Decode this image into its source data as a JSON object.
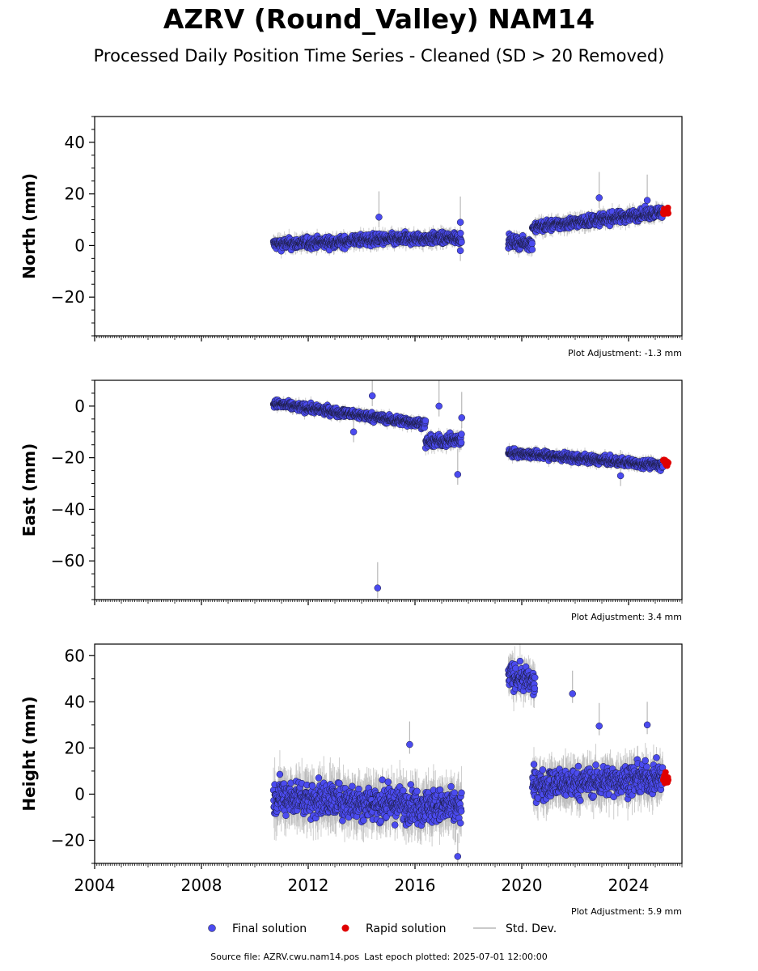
{
  "title": "AZRV (Round_Valley) NAM14",
  "subtitle": "Processed Daily Position Time Series - Cleaned (SD > 20 Removed)",
  "footer": {
    "source": "Source file: AZRV.cwu.nam14.pos",
    "last_epoch": "Last epoch plotted: 2025-07-01 12:00:00"
  },
  "legend": {
    "final": "Final solution",
    "rapid": "Rapid solution",
    "std": "Std. Dev."
  },
  "colors": {
    "final": "#4b4bef",
    "rapid": "#e00000",
    "std": "#b8b8b8"
  },
  "chart_data": [
    {
      "type": "scatter",
      "ylabel": "North (mm)",
      "adjustment": "Plot Adjustment: -1.3 mm",
      "xlim": [
        2004,
        2026
      ],
      "ylim": [
        -35,
        50
      ],
      "yticks": [
        -20,
        0,
        20,
        40
      ],
      "yticks_labels": [
        "−20",
        "0",
        "20",
        "40"
      ],
      "xticks": [
        2004,
        2008,
        2012,
        2016,
        2020,
        2024
      ],
      "final_segments": [
        {
          "x0": 2010.7,
          "x1": 2013.5,
          "y0": 0.5,
          "y1": 1.5,
          "noise": 2.0
        },
        {
          "x0": 2013.5,
          "x1": 2017.75,
          "y0": 2.0,
          "y1": 3.0,
          "noise": 2.0
        },
        {
          "x0": 2019.5,
          "x1": 2020.4,
          "y0": 1.5,
          "y1": 0.5,
          "noise": 2.0
        },
        {
          "x0": 2020.4,
          "x1": 2025.3,
          "y0": 7.0,
          "y1": 13.0,
          "noise": 2.0
        }
      ],
      "rapid": {
        "x0": 2025.3,
        "x1": 2025.5,
        "y0": 12.5,
        "y1": 13.5,
        "noise": 1.2
      },
      "outliers": [
        [
          2014.65,
          11
        ],
        [
          2022.9,
          18.5
        ],
        [
          2024.7,
          17.5
        ],
        [
          2017.7,
          9
        ],
        [
          2017.7,
          -2
        ]
      ]
    },
    {
      "type": "scatter",
      "ylabel": "East (mm)",
      "adjustment": "Plot Adjustment: 3.4 mm",
      "xlim": [
        2004,
        2026
      ],
      "ylim": [
        -75,
        10
      ],
      "yticks": [
        -60,
        -40,
        -20,
        0
      ],
      "yticks_labels": [
        "−60",
        "−40",
        "−20",
        "0"
      ],
      "xticks": [
        2004,
        2008,
        2012,
        2016,
        2020,
        2024
      ],
      "final_segments": [
        {
          "x0": 2010.7,
          "x1": 2016.4,
          "y0": 1.0,
          "y1": -7.0,
          "noise": 1.5
        },
        {
          "x0": 2016.4,
          "x1": 2017.75,
          "y0": -14.0,
          "y1": -13.0,
          "noise": 2.0
        },
        {
          "x0": 2019.5,
          "x1": 2025.3,
          "y0": -18.0,
          "y1": -23.0,
          "noise": 1.5
        }
      ],
      "rapid": {
        "x0": 2025.3,
        "x1": 2025.5,
        "y0": -21.0,
        "y1": -22.5,
        "noise": 1.0
      },
      "outliers": [
        [
          2014.6,
          -70.5
        ],
        [
          2017.6,
          -26.5
        ],
        [
          2013.7,
          -10
        ],
        [
          2014.4,
          4
        ],
        [
          2016.9,
          0
        ],
        [
          2023.7,
          -27
        ],
        [
          2017.75,
          -4.5
        ]
      ]
    },
    {
      "type": "scatter",
      "ylabel": "Height (mm)",
      "adjustment": "Plot Adjustment: 5.9 mm",
      "xlim": [
        2004,
        2026
      ],
      "ylim": [
        -30,
        65
      ],
      "yticks": [
        -20,
        0,
        20,
        40,
        60
      ],
      "yticks_labels": [
        "−20",
        "0",
        "20",
        "40",
        "60"
      ],
      "xticks": [
        2004,
        2008,
        2012,
        2016,
        2020,
        2024
      ],
      "xticks_labels": [
        "2004",
        "2008",
        "2012",
        "2016",
        "2020",
        "2024"
      ],
      "final_segments": [
        {
          "x0": 2010.7,
          "x1": 2017.75,
          "y0": -1.0,
          "y1": -6.0,
          "noise": 7.0
        },
        {
          "x0": 2019.5,
          "x1": 2020.5,
          "y0": 52.0,
          "y1": 48.0,
          "noise": 5.0
        },
        {
          "x0": 2020.4,
          "x1": 2025.3,
          "y0": 4.0,
          "y1": 7.0,
          "noise": 6.0
        }
      ],
      "rapid": {
        "x0": 2025.3,
        "x1": 2025.5,
        "y0": 7.0,
        "y1": 6.0,
        "noise": 3.0
      },
      "outliers": [
        [
          2021.9,
          43.5
        ],
        [
          2015.8,
          21.5
        ],
        [
          2017.6,
          -27
        ],
        [
          2022.9,
          29.5
        ],
        [
          2024.7,
          30
        ]
      ]
    }
  ]
}
